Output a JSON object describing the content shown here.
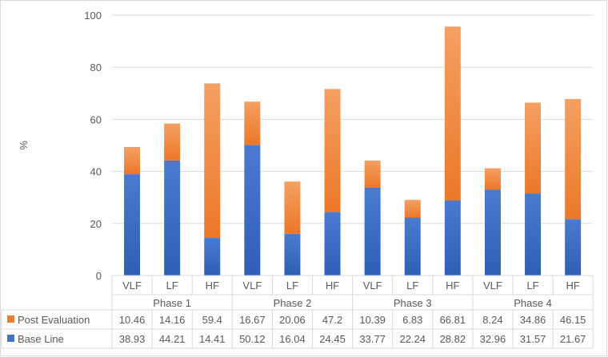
{
  "chart_data": {
    "type": "bar",
    "stacked": true,
    "ylabel": "%",
    "ylim": [
      0,
      100
    ],
    "yticks": [
      0,
      20,
      40,
      60,
      80,
      100
    ],
    "grid": true,
    "legend_placement": "data-table-left",
    "categories": [
      "VLF",
      "LF",
      "HF",
      "VLF",
      "LF",
      "HF",
      "VLF",
      "LF",
      "HF",
      "VLF",
      "LF",
      "HF"
    ],
    "groups": [
      {
        "label": "Phase 1",
        "span": 3
      },
      {
        "label": "Phase 2",
        "span": 3
      },
      {
        "label": "Phase 3",
        "span": 3
      },
      {
        "label": "Phase 4",
        "span": 3
      }
    ],
    "series": [
      {
        "name": "Base Line",
        "color": "#4472c4",
        "values": [
          38.93,
          44.21,
          14.41,
          50.12,
          16.04,
          24.45,
          33.77,
          22.24,
          28.82,
          32.96,
          31.57,
          21.67
        ]
      },
      {
        "name": "Post Evaluation",
        "color": "#ed7d31",
        "values": [
          10.46,
          14.16,
          59.4,
          16.67,
          20.06,
          47.2,
          10.39,
          6.83,
          66.81,
          8.24,
          34.86,
          46.15
        ]
      }
    ],
    "table_rows": [
      {
        "name": "Post Evaluation",
        "cells": [
          "10.46",
          "14.16",
          "59.4",
          "16.67",
          "20.06",
          "47.2",
          "10.39",
          "6.83",
          "66.81",
          "8.24",
          "34.86",
          "46.15"
        ]
      },
      {
        "name": "Base Line",
        "cells": [
          "38.93",
          "44.21",
          "14.41",
          "50.12",
          "16.04",
          "24.45",
          "33.77",
          "22.24",
          "28.82",
          "32.96",
          "31.57",
          "21.67"
        ]
      }
    ]
  }
}
